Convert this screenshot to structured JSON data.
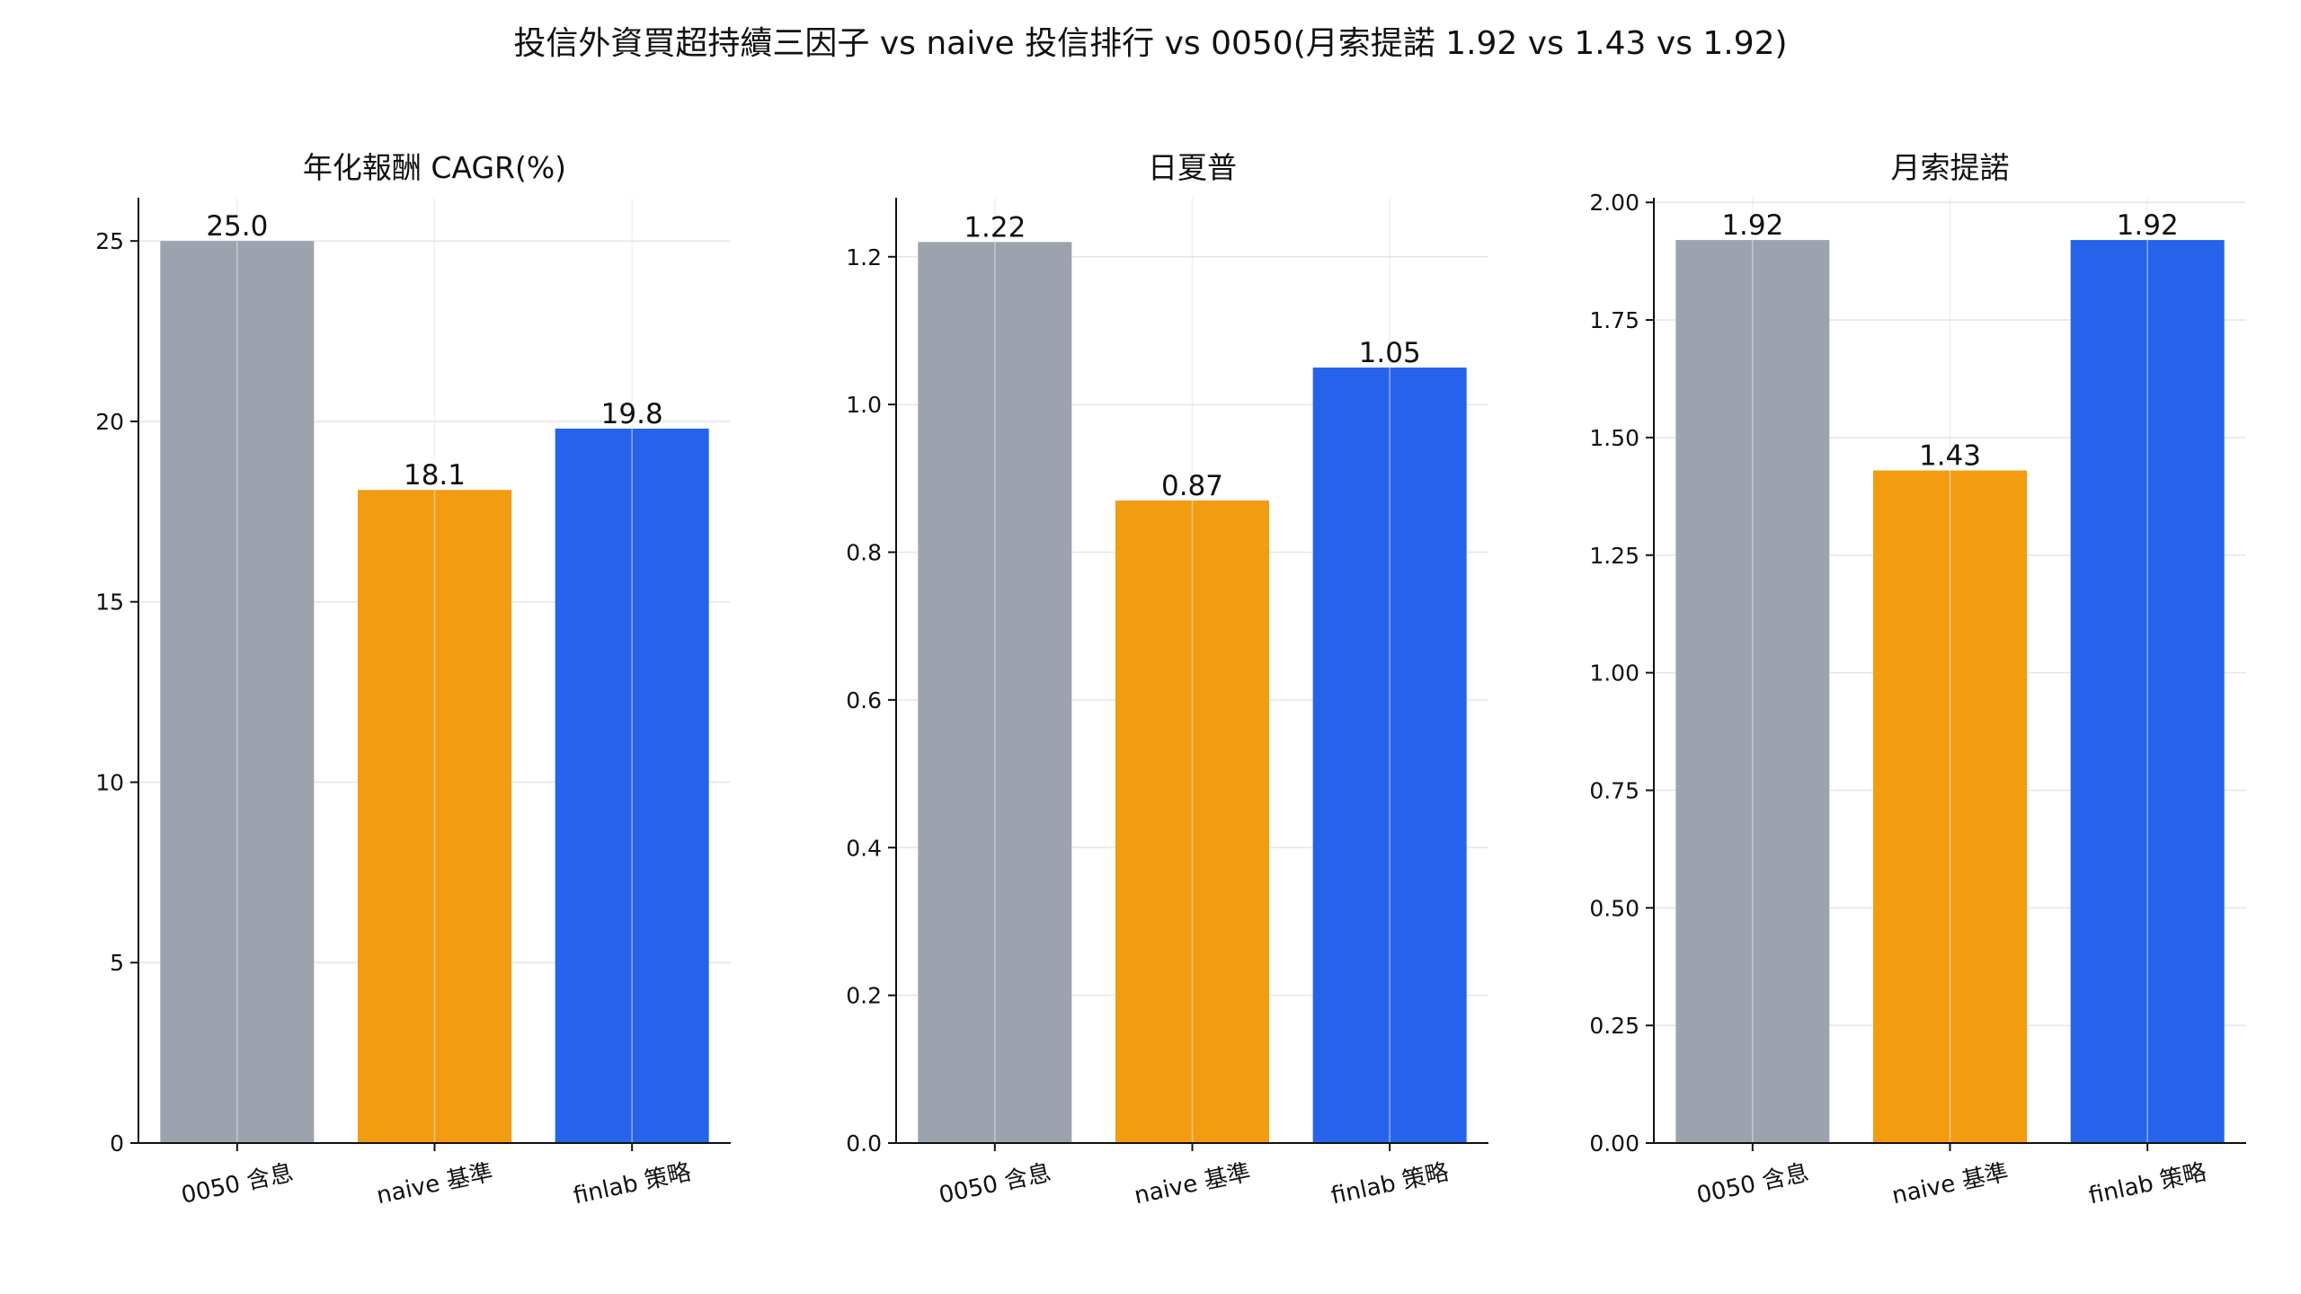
{
  "figure": {
    "title": "投信外資買超持續三因子 vs naive 投信排行 vs 0050(月索提諾 1.92 vs 1.43 vs 1.92)"
  },
  "colors": {
    "0050": "#9ca3af",
    "naive": "#f39c12",
    "finlab": "#2563eb"
  },
  "chart_data": [
    {
      "type": "bar",
      "title": "年化報酬 CAGR(%)",
      "categories": [
        "0050 含息",
        "naive 基準",
        "finlab 策略"
      ],
      "values": [
        25.0,
        18.1,
        19.8
      ],
      "value_labels": [
        "25.0",
        "18.1",
        "19.8"
      ],
      "ylim": [
        0,
        26.2
      ],
      "yticks": [
        0,
        5,
        10,
        15,
        20,
        25
      ],
      "ytick_labels": [
        "0",
        "5",
        "10",
        "15",
        "20",
        "25"
      ],
      "grid": true,
      "xlabel": "",
      "ylabel": ""
    },
    {
      "type": "bar",
      "title": "日夏普",
      "categories": [
        "0050 含息",
        "naive 基準",
        "finlab 策略"
      ],
      "values": [
        1.22,
        0.87,
        1.05
      ],
      "value_labels": [
        "1.22",
        "0.87",
        "1.05"
      ],
      "ylim": [
        0,
        1.28
      ],
      "yticks": [
        0.0,
        0.2,
        0.4,
        0.6,
        0.8,
        1.0,
        1.2
      ],
      "ytick_labels": [
        "0.0",
        "0.2",
        "0.4",
        "0.6",
        "0.8",
        "1.0",
        "1.2"
      ],
      "grid": true,
      "xlabel": "",
      "ylabel": ""
    },
    {
      "type": "bar",
      "title": "月索提諾",
      "categories": [
        "0050 含息",
        "naive 基準",
        "finlab 策略"
      ],
      "values": [
        1.92,
        1.43,
        1.92
      ],
      "value_labels": [
        "1.92",
        "1.43",
        "1.92"
      ],
      "ylim": [
        0,
        2.01
      ],
      "yticks": [
        0.0,
        0.25,
        0.5,
        0.75,
        1.0,
        1.25,
        1.5,
        1.75,
        2.0
      ],
      "ytick_labels": [
        "0.00",
        "0.25",
        "0.50",
        "0.75",
        "1.00",
        "1.25",
        "1.50",
        "1.75",
        "2.00"
      ],
      "grid": true,
      "xlabel": "",
      "ylabel": ""
    }
  ]
}
